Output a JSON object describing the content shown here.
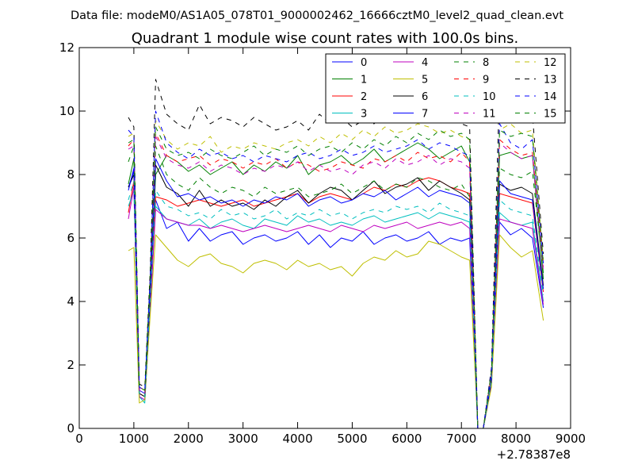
{
  "header": {
    "suptitle": "Data file: modeM0/AS1A05_078T01_9000002462_16666cztM0_level2_quad_clean.evt"
  },
  "chart_data": {
    "type": "line",
    "title": "Quadrant 1 module wise count rates with 100.0s bins.",
    "xlabel": "",
    "ylabel": "",
    "x_offset_label": "+2.78387e8",
    "xlim": [
      0,
      9000
    ],
    "ylim": [
      0,
      12
    ],
    "x_ticks": [
      0,
      1000,
      2000,
      3000,
      4000,
      5000,
      6000,
      7000,
      8000,
      9000
    ],
    "y_ticks": [
      0,
      2,
      4,
      6,
      8,
      10,
      12
    ],
    "x_tick_labels": [
      "0",
      "1000",
      "2000",
      "3000",
      "4000",
      "5000",
      "6000",
      "7000",
      "8000",
      "9000"
    ],
    "y_tick_labels": [
      "0",
      "2",
      "4",
      "6",
      "8",
      "10",
      "12"
    ],
    "grid": false,
    "legend_position": "top-right",
    "legend_columns": 4,
    "x": [
      900,
      1000,
      1100,
      1200,
      1300,
      1400,
      1600,
      1800,
      2000,
      2200,
      2400,
      2600,
      2800,
      3000,
      3200,
      3400,
      3600,
      3800,
      4000,
      4200,
      4400,
      4600,
      4800,
      5000,
      5200,
      5400,
      5600,
      5800,
      6000,
      6200,
      6400,
      6600,
      6800,
      7000,
      7150,
      7300,
      7400,
      7550,
      7700,
      7900,
      8100,
      8300,
      8500
    ],
    "series": [
      {
        "name": "0",
        "color": "#0000ff",
        "dash": "solid",
        "values": [
          7.6,
          8.1,
          1.0,
          0.9,
          4.0,
          7.2,
          6.3,
          6.5,
          5.9,
          6.3,
          5.9,
          6.1,
          6.2,
          5.8,
          6.0,
          6.1,
          5.9,
          6.0,
          6.2,
          5.8,
          6.1,
          5.7,
          6.0,
          5.9,
          6.2,
          5.8,
          6.0,
          6.1,
          5.9,
          6.0,
          6.2,
          5.8,
          6.0,
          5.9,
          6.0,
          0.0,
          0.0,
          1.4,
          6.5,
          6.1,
          6.3,
          6.0,
          3.8
        ]
      },
      {
        "name": "1",
        "color": "#008000",
        "dash": "solid",
        "values": [
          7.7,
          8.5,
          1.1,
          1.0,
          4.3,
          8.0,
          8.6,
          8.4,
          8.1,
          8.3,
          8.0,
          8.2,
          8.4,
          8.0,
          8.3,
          8.1,
          8.4,
          8.2,
          8.6,
          8.0,
          8.3,
          8.4,
          8.6,
          8.3,
          8.5,
          8.8,
          8.4,
          8.6,
          8.8,
          9.0,
          8.8,
          8.5,
          8.7,
          8.9,
          8.4,
          0.0,
          0.0,
          1.6,
          8.6,
          8.7,
          8.5,
          8.6,
          4.7
        ]
      },
      {
        "name": "2",
        "color": "#ff0000",
        "dash": "solid",
        "values": [
          6.8,
          7.8,
          1.1,
          1.0,
          4.0,
          7.3,
          7.2,
          7.0,
          7.1,
          7.2,
          7.1,
          7.0,
          7.1,
          7.2,
          7.0,
          7.1,
          7.2,
          7.3,
          7.4,
          7.1,
          7.3,
          7.4,
          7.3,
          7.2,
          7.4,
          7.6,
          7.5,
          7.7,
          7.6,
          7.8,
          7.9,
          7.8,
          7.6,
          7.5,
          7.4,
          0.0,
          0.0,
          1.5,
          7.4,
          7.3,
          7.2,
          7.1,
          4.3
        ]
      },
      {
        "name": "3",
        "color": "#00bfbf",
        "dash": "solid",
        "values": [
          7.0,
          7.5,
          1.0,
          0.8,
          3.8,
          7.0,
          6.6,
          6.5,
          6.4,
          6.6,
          6.3,
          6.5,
          6.6,
          6.4,
          6.3,
          6.6,
          6.5,
          6.4,
          6.7,
          6.5,
          6.6,
          6.4,
          6.5,
          6.4,
          6.6,
          6.7,
          6.5,
          6.6,
          6.7,
          6.8,
          6.6,
          6.8,
          6.7,
          6.6,
          6.5,
          0.0,
          0.0,
          1.4,
          6.8,
          6.5,
          6.4,
          6.5,
          4.0
        ]
      },
      {
        "name": "4",
        "color": "#bf00bf",
        "dash": "solid",
        "values": [
          6.6,
          7.6,
          1.0,
          0.9,
          3.8,
          6.9,
          6.6,
          6.5,
          6.4,
          6.4,
          6.3,
          6.4,
          6.3,
          6.2,
          6.3,
          6.4,
          6.3,
          6.2,
          6.3,
          6.4,
          6.3,
          6.2,
          6.4,
          6.3,
          6.2,
          6.4,
          6.3,
          6.4,
          6.5,
          6.3,
          6.4,
          6.5,
          6.4,
          6.5,
          6.3,
          0.0,
          0.0,
          1.4,
          6.6,
          6.5,
          6.4,
          6.3,
          3.9
        ]
      },
      {
        "name": "5",
        "color": "#bfbf00",
        "dash": "solid",
        "values": [
          5.6,
          5.7,
          0.8,
          0.9,
          3.6,
          6.1,
          5.7,
          5.3,
          5.1,
          5.4,
          5.5,
          5.2,
          5.1,
          4.9,
          5.2,
          5.3,
          5.2,
          5.0,
          5.3,
          5.1,
          5.2,
          5.0,
          5.1,
          4.8,
          5.2,
          5.4,
          5.3,
          5.6,
          5.4,
          5.5,
          5.9,
          5.8,
          5.6,
          5.4,
          5.3,
          0.0,
          0.0,
          1.3,
          6.1,
          5.7,
          5.4,
          5.6,
          3.4
        ]
      },
      {
        "name": "6",
        "color": "#000000",
        "dash": "solid",
        "values": [
          7.6,
          8.0,
          1.1,
          1.0,
          4.2,
          8.3,
          7.6,
          7.4,
          7.0,
          7.5,
          7.0,
          7.2,
          7.0,
          7.1,
          6.9,
          7.2,
          7.0,
          7.3,
          7.5,
          7.1,
          7.4,
          7.6,
          7.5,
          7.2,
          7.5,
          7.8,
          7.4,
          7.6,
          7.7,
          7.9,
          7.5,
          7.8,
          7.6,
          7.4,
          7.2,
          0.0,
          0.0,
          1.5,
          7.7,
          7.5,
          7.6,
          7.4,
          4.5
        ]
      },
      {
        "name": "7",
        "color": "#0000ff",
        "dash": "solid",
        "values": [
          7.5,
          8.2,
          1.2,
          1.1,
          4.2,
          8.5,
          7.8,
          7.3,
          7.4,
          7.2,
          7.3,
          7.1,
          7.2,
          7.0,
          7.2,
          7.1,
          7.3,
          7.2,
          7.4,
          7.0,
          7.2,
          7.3,
          7.1,
          7.2,
          7.4,
          7.3,
          7.5,
          7.2,
          7.4,
          7.6,
          7.3,
          7.5,
          7.4,
          7.3,
          7.1,
          0.0,
          0.0,
          1.5,
          7.8,
          7.4,
          7.3,
          7.2,
          4.4
        ]
      },
      {
        "name": "8",
        "color": "#008000",
        "dash": "dashed",
        "values": [
          8.4,
          8.9,
          1.2,
          1.1,
          4.5,
          8.9,
          8.0,
          7.7,
          7.5,
          7.9,
          7.6,
          7.4,
          7.6,
          7.5,
          7.3,
          7.6,
          7.4,
          7.5,
          7.6,
          7.3,
          7.4,
          7.5,
          7.7,
          7.4,
          7.6,
          7.8,
          7.5,
          7.7,
          7.6,
          7.9,
          7.8,
          7.6,
          7.5,
          7.7,
          7.3,
          0.0,
          0.0,
          1.6,
          8.2,
          8.0,
          7.9,
          8.1,
          4.9
        ]
      },
      {
        "name": "9",
        "color": "#ff0000",
        "dash": "dashed",
        "values": [
          8.9,
          9.1,
          1.3,
          1.2,
          4.7,
          9.3,
          8.6,
          8.4,
          8.5,
          8.6,
          8.3,
          8.5,
          8.4,
          8.2,
          8.4,
          8.3,
          8.5,
          8.2,
          8.4,
          8.3,
          8.1,
          8.2,
          8.4,
          8.3,
          8.2,
          8.5,
          8.4,
          8.6,
          8.4,
          8.7,
          8.5,
          8.6,
          8.4,
          8.7,
          8.4,
          0.0,
          0.0,
          1.7,
          9.1,
          8.8,
          8.6,
          8.7,
          5.1
        ]
      },
      {
        "name": "10",
        "color": "#00bfbf",
        "dash": "dashed",
        "values": [
          7.2,
          7.8,
          1.1,
          1.0,
          4.1,
          7.5,
          7.0,
          6.9,
          6.7,
          6.8,
          6.6,
          6.9,
          6.7,
          6.8,
          6.6,
          6.7,
          6.9,
          6.6,
          6.8,
          6.7,
          6.9,
          6.7,
          6.8,
          6.6,
          6.8,
          6.9,
          6.8,
          7.0,
          6.9,
          7.0,
          6.8,
          7.1,
          6.9,
          6.8,
          6.7,
          0.0,
          0.0,
          1.5,
          7.2,
          6.9,
          6.8,
          6.7,
          4.2
        ]
      },
      {
        "name": "11",
        "color": "#bf00bf",
        "dash": "dashed",
        "values": [
          8.8,
          8.9,
          1.2,
          1.1,
          4.6,
          9.2,
          8.5,
          8.3,
          8.2,
          8.4,
          8.1,
          8.3,
          8.2,
          8.0,
          8.2,
          8.1,
          8.3,
          8.2,
          8.4,
          8.1,
          8.3,
          8.1,
          8.2,
          8.0,
          8.3,
          8.4,
          8.2,
          8.5,
          8.3,
          8.4,
          8.6,
          8.3,
          8.5,
          8.4,
          8.2,
          0.0,
          0.0,
          1.7,
          9.0,
          8.7,
          8.5,
          8.6,
          5.0
        ]
      },
      {
        "name": "12",
        "color": "#bfbf00",
        "dash": "dashed",
        "values": [
          9.2,
          9.3,
          1.3,
          1.2,
          4.9,
          9.7,
          9.1,
          8.8,
          9.0,
          8.9,
          9.2,
          8.7,
          8.9,
          8.8,
          9.0,
          8.9,
          8.8,
          9.0,
          9.1,
          8.9,
          9.2,
          9.0,
          9.3,
          9.1,
          9.4,
          9.2,
          9.5,
          9.3,
          9.4,
          9.6,
          9.5,
          9.3,
          9.4,
          9.2,
          9.1,
          0.0,
          0.0,
          1.8,
          9.4,
          9.6,
          9.3,
          9.4,
          5.3
        ]
      },
      {
        "name": "13",
        "color": "#000000",
        "dash": "dashed",
        "values": [
          9.8,
          9.5,
          1.4,
          1.3,
          5.0,
          11.0,
          9.9,
          9.6,
          9.4,
          10.2,
          9.6,
          9.8,
          9.7,
          9.5,
          9.8,
          9.6,
          9.4,
          9.5,
          9.7,
          9.4,
          9.9,
          9.6,
          9.8,
          9.5,
          9.7,
          9.6,
          9.9,
          9.7,
          9.8,
          10.0,
          9.7,
          9.9,
          9.8,
          9.6,
          9.5,
          0.0,
          0.0,
          1.9,
          10.8,
          10.0,
          9.8,
          9.9,
          5.5
        ]
      },
      {
        "name": "14",
        "color": "#0000ff",
        "dash": "dashed",
        "values": [
          9.4,
          9.2,
          1.3,
          1.2,
          4.8,
          10.0,
          9.0,
          8.7,
          8.5,
          8.8,
          8.6,
          8.7,
          8.5,
          8.6,
          8.4,
          8.6,
          8.5,
          8.4,
          8.6,
          8.7,
          8.5,
          8.6,
          8.8,
          8.6,
          8.7,
          8.9,
          8.7,
          8.8,
          8.9,
          9.1,
          8.8,
          9.0,
          8.9,
          8.7,
          8.6,
          0.0,
          0.0,
          1.8,
          9.6,
          9.0,
          8.8,
          9.1,
          5.2
        ]
      },
      {
        "name": "15",
        "color": "#008000",
        "dash": "dashed",
        "values": [
          9.0,
          9.1,
          1.3,
          1.2,
          4.7,
          9.5,
          8.8,
          8.6,
          8.7,
          8.5,
          8.8,
          8.6,
          8.5,
          8.7,
          8.9,
          8.6,
          8.8,
          8.7,
          8.9,
          8.6,
          8.8,
          8.9,
          8.7,
          9.0,
          8.8,
          9.1,
          8.9,
          9.2,
          9.0,
          9.3,
          9.1,
          9.4,
          9.2,
          9.3,
          9.1,
          0.0,
          0.0,
          1.8,
          9.4,
          9.2,
          9.3,
          9.2,
          5.2
        ]
      }
    ]
  }
}
